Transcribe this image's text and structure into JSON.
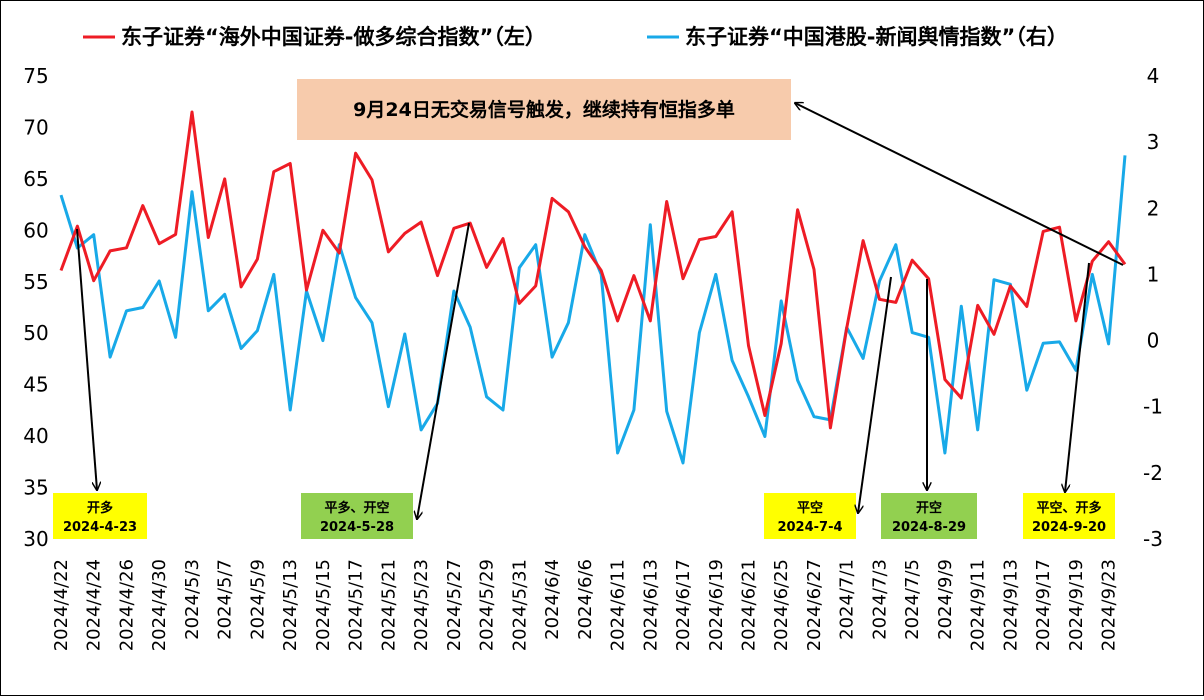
{
  "chart_data": {
    "type": "line",
    "x": [
      "2024/4/22",
      "2024/4/23",
      "2024/4/24",
      "2024/4/25",
      "2024/4/26",
      "2024/4/29",
      "2024/4/30",
      "2024/5/2",
      "2024/5/3",
      "2024/5/6",
      "2024/5/7",
      "2024/5/8",
      "2024/5/9",
      "2024/5/10",
      "2024/5/13",
      "2024/5/14",
      "2024/5/15",
      "2024/5/16",
      "2024/5/17",
      "2024/5/20",
      "2024/5/21",
      "2024/5/22",
      "2024/5/23",
      "2024/5/24",
      "2024/5/27",
      "2024/5/28",
      "2024/5/29",
      "2024/5/30",
      "2024/5/31",
      "2024/6/3",
      "2024/6/4",
      "2024/6/5",
      "2024/6/6",
      "2024/6/7",
      "2024/6/11",
      "2024/6/12",
      "2024/6/13",
      "2024/6/14",
      "2024/6/17",
      "2024/6/18",
      "2024/6/19",
      "2024/6/20",
      "2024/6/21",
      "2024/6/24",
      "2024/6/25",
      "2024/6/26",
      "2024/6/27",
      "2024/6/28",
      "2024/7/1",
      "2024/7/2",
      "2024/7/3",
      "2024/7/4",
      "2024/7/5",
      "2024/8/29",
      "2024/9/9",
      "2024/9/10",
      "2024/9/11",
      "2024/9/12",
      "2024/9/13",
      "2024/9/16",
      "2024/9/17",
      "2024/9/18",
      "2024/9/19",
      "2024/9/20",
      "2024/9/23",
      "2024/9/24"
    ],
    "x_tick_labels": [
      "2024/4/22",
      "2024/4/24",
      "2024/4/26",
      "2024/4/30",
      "2024/5/3",
      "2024/5/7",
      "2024/5/9",
      "2024/5/13",
      "2024/5/15",
      "2024/5/17",
      "2024/5/21",
      "2024/5/23",
      "2024/5/27",
      "2024/5/29",
      "2024/5/31",
      "2024/6/4",
      "2024/6/6",
      "2024/6/11",
      "2024/6/13",
      "2024/6/17",
      "2024/6/19",
      "2024/6/21",
      "2024/6/25",
      "2024/6/27",
      "2024/7/1",
      "2024/7/3",
      "2024/7/5",
      "2024/9/9",
      "2024/9/11",
      "2024/9/13",
      "2024/9/17",
      "2024/9/19",
      "2024/9/23"
    ],
    "series": [
      {
        "name": "东子证券“海外中国证券-做多综合指数”（左）",
        "axis": "left",
        "color": "#ee1c25",
        "values": [
          56.1,
          60.4,
          55.1,
          58.0,
          58.3,
          62.4,
          58.7,
          59.6,
          71.5,
          59.3,
          65.0,
          54.5,
          57.2,
          65.7,
          66.5,
          54.2,
          60.0,
          57.8,
          67.5,
          64.9,
          57.9,
          59.7,
          60.8,
          55.6,
          60.2,
          60.7,
          56.4,
          59.2,
          52.9,
          54.6,
          63.1,
          61.8,
          58.4,
          56.1,
          51.2,
          55.6,
          51.2,
          62.8,
          55.3,
          59.1,
          59.4,
          61.8,
          48.8,
          42.0,
          49.0,
          62.0,
          56.2,
          40.8,
          50.5,
          59.0,
          53.3,
          53.0,
          57.1,
          55.3,
          45.5,
          43.7,
          52.7,
          49.9,
          54.6,
          52.6,
          59.9,
          60.3,
          51.2,
          57.0,
          58.9,
          56.7
        ]
      },
      {
        "name": "东子证券“中国港股-新闻舆情指数”（右）",
        "axis": "right",
        "color": "#18a9e8",
        "values": [
          2.2,
          1.4,
          1.6,
          -0.25,
          0.45,
          0.5,
          0.9,
          0.05,
          2.25,
          0.45,
          0.7,
          -0.12,
          0.15,
          1.0,
          -1.05,
          0.75,
          0.0,
          1.45,
          0.65,
          0.27,
          -1.0,
          0.1,
          -1.35,
          -0.95,
          0.75,
          0.2,
          -0.85,
          -1.05,
          1.1,
          1.45,
          -0.25,
          0.27,
          1.6,
          1.0,
          -1.7,
          -1.05,
          1.75,
          -1.07,
          -1.85,
          0.12,
          1.0,
          -0.3,
          -0.85,
          -1.45,
          0.6,
          -0.6,
          -1.15,
          -1.2,
          0.2,
          -0.27,
          0.9,
          1.45,
          0.12,
          0.05,
          -1.7,
          0.52,
          -1.35,
          0.92,
          0.85,
          -0.75,
          -0.04,
          -0.02,
          -0.45,
          1.0,
          -0.05,
          2.8
        ]
      }
    ],
    "y_left": {
      "min": 30,
      "max": 75,
      "ticks": [
        30,
        35,
        40,
        45,
        50,
        55,
        60,
        65,
        70,
        75
      ]
    },
    "y_right": {
      "min": -3,
      "max": 4,
      "ticks": [
        -3,
        -2,
        -1,
        0,
        1,
        2,
        3,
        4
      ]
    },
    "legend_position": "top",
    "grid": false,
    "callout": {
      "text": "9月24日无交易信号触发，继续持有恒指多单",
      "bg": "#f7cbac"
    },
    "signals": [
      {
        "label": "开多",
        "date": "2024-4-23",
        "bg": "#ffff00"
      },
      {
        "label": "平多、开空",
        "date": "2024-5-28",
        "bg": "#92d050"
      },
      {
        "label": "平空",
        "date": "2024-7-4",
        "bg": "#ffff00"
      },
      {
        "label": "开空",
        "date": "2024-8-29",
        "bg": "#92d050"
      },
      {
        "label": "平空、开多",
        "date": "2024-9-20",
        "bg": "#ffff00"
      }
    ]
  }
}
